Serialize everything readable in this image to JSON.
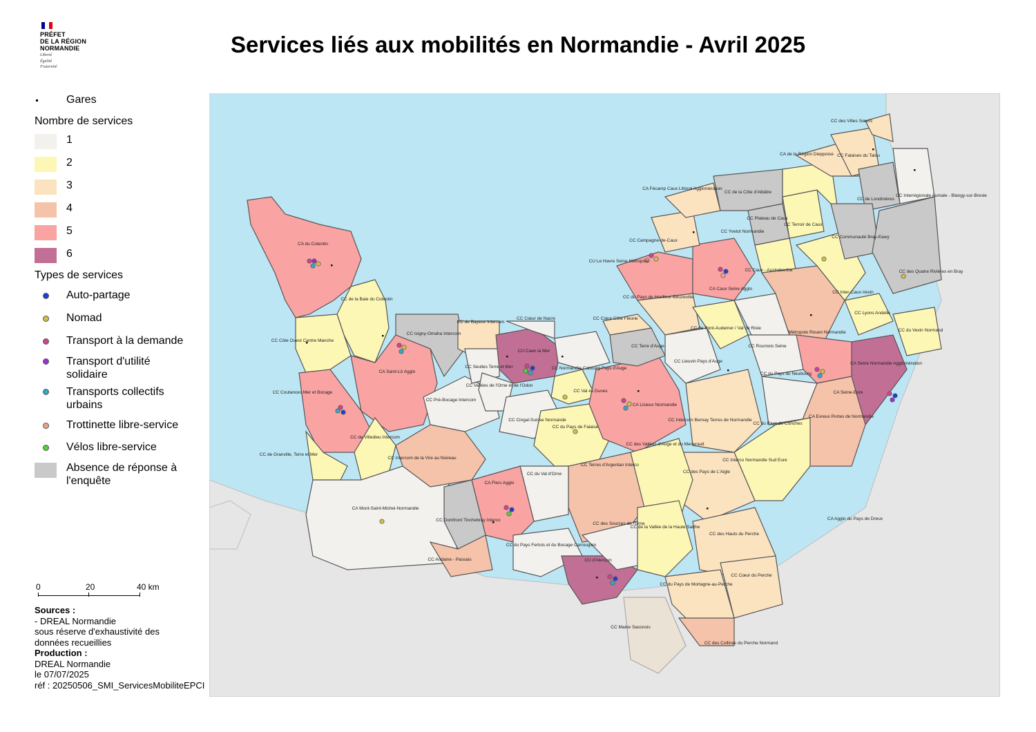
{
  "header": {
    "logo_lines": [
      "PRÉFET",
      "DE LA RÉGION",
      "NORMANDIE"
    ],
    "logo_motto": [
      "Liberté",
      "Égalité",
      "Fraternité"
    ],
    "title": "Services liés aux mobilités en Normandie - Avril 2025"
  },
  "legend": {
    "gares_label": "Gares",
    "count_title": "Nombre de services",
    "counts": [
      {
        "label": "1",
        "color": "#f2f1ee"
      },
      {
        "label": "2",
        "color": "#fdf7b5"
      },
      {
        "label": "3",
        "color": "#fbe3c0"
      },
      {
        "label": "4",
        "color": "#f5c2aa"
      },
      {
        "label": "5",
        "color": "#f9a3a3"
      },
      {
        "label": "6",
        "color": "#c26f95"
      }
    ],
    "types_title": "Types de services",
    "types": [
      {
        "label": "Auto-partage",
        "color": "#1f3fd6"
      },
      {
        "label": "Nomad",
        "color": "#cdbf4a"
      },
      {
        "label": "Transport à la demande",
        "color": "#c9478f"
      },
      {
        "label": "Transport d'utilité solidaire",
        "color": "#9b2fd1"
      },
      {
        "label": "Transports collectifs urbains",
        "color": "#30aac3"
      },
      {
        "label": "Trottinette libre-service",
        "color": "#eea28e"
      },
      {
        "label": "Vélos libre-service",
        "color": "#55d13a"
      }
    ],
    "absence": {
      "label": "Absence de réponse à l'enquête",
      "color": "#c9c9c9"
    }
  },
  "scale": {
    "ticks": [
      "0",
      "20",
      "40 km"
    ]
  },
  "sources": {
    "title": "Sources :",
    "lines": [
      "- DREAL Normandie",
      "sous réserve d'exhaustivité des",
      "données recueillies"
    ],
    "production_title": "Production :",
    "production_lines": [
      "DREAL Normandie",
      "le 07/07/2025",
      "réf : 20250506_SMI_ServicesMobiliteEPCI"
    ]
  },
  "map": {
    "colors": {
      "sea": "#bde6f4",
      "land": "#e6e6e6",
      "border": "#4f4f4f"
    },
    "labels": [
      "CA du Cotentin",
      "CC de la Baie du Cotentin",
      "CC Côte Ouest Centre Manche",
      "CA Saint-Lô Agglo",
      "CC Coutances Mer et Bocage",
      "CC de Villedieu Intercom",
      "CC de Granville, Terre et Mer",
      "CA Mont-Saint-Michel-Normandie",
      "CC Isigny-Omaha Intercom",
      "CC de Bayeux Intercom",
      "CC Seulles Terre et Mer",
      "CC Cœur de Nacre",
      "CU Caen la Mer",
      "CC Vallées de l'Orne et de l'Odon",
      "CC Pré-Bocage Intercom",
      "CC Intercom de la Vire au Noireau",
      "CC Cingal-Suisse Normande",
      "CC du Pays de Falaise",
      "CC Val ès Dunes",
      "CC Normandie-Cabourg-Pays d'Auge",
      "CC Cœur Côte Fleurie",
      "CC Terre d'Auge",
      "CA Lisieux Normandie",
      "CC Lieuvin Pays d'Auge",
      "CC du Pays de Honfleur-Beuzeville",
      "CU Le Havre Seine Métropole",
      "CC Campagne-de-Caux",
      "CA Fécamp Caux Littoral Agglomération",
      "CC de la Côte d'Albâtre",
      "CC Yvetot Normandie",
      "CC Plateau de Caux",
      "CC Terroir de Caux",
      "CC Caux - Austreberthe",
      "CA Caux Seine Agglo",
      "CC de Pont-Audemer / Val de Risle",
      "CC Roumois Seine",
      "Métropole Rouen Normandie",
      "CC Inter-Caux-Vexin",
      "CC Lyons Andelle",
      "CC du Vexin Normand",
      "CA Seine Normandie Agglomération",
      "CA Seine-Eure",
      "CC du Pays du Neubourg",
      "CC du Pays de Conches",
      "CA Evreux Portes de Normandie",
      "CC Intercom Bernay Terres de Normandie",
      "CC Interco Normandie Sud Eure",
      "CC des Pays de L'Aigle",
      "CC des Vallées d'Auge et du Merlerault",
      "CC Terres d'Argentan Interco",
      "CC du Val d'Orne",
      "CA Flers Agglo",
      "CC Domfront Tinchebray Interco",
      "CC Andaine - Passais",
      "CC du Pays Fertois et du Bocage Carrougien",
      "CU d'Alençon",
      "CC des Sources de l'Orne",
      "CC de la Vallée de la Haute Sarthe",
      "CC des Hauts du Perche",
      "CC Cœur du Perche",
      "CC du Pays de Mortagne-au-Perche",
      "CC des Collines du Perche Normand",
      "CC Maine Saosnois",
      "CA de la Région Dieppoise",
      "CC Falaises du Talou",
      "CC des Villes Sœurs",
      "CC de Londinières",
      "CC Interrégionale Aumale - Blangy-sur-Bresle",
      "CC Communauté Bray-Eawy",
      "CC des Quatre Rivières en Bray",
      "CA Agglo du Pays de Dreux"
    ]
  }
}
